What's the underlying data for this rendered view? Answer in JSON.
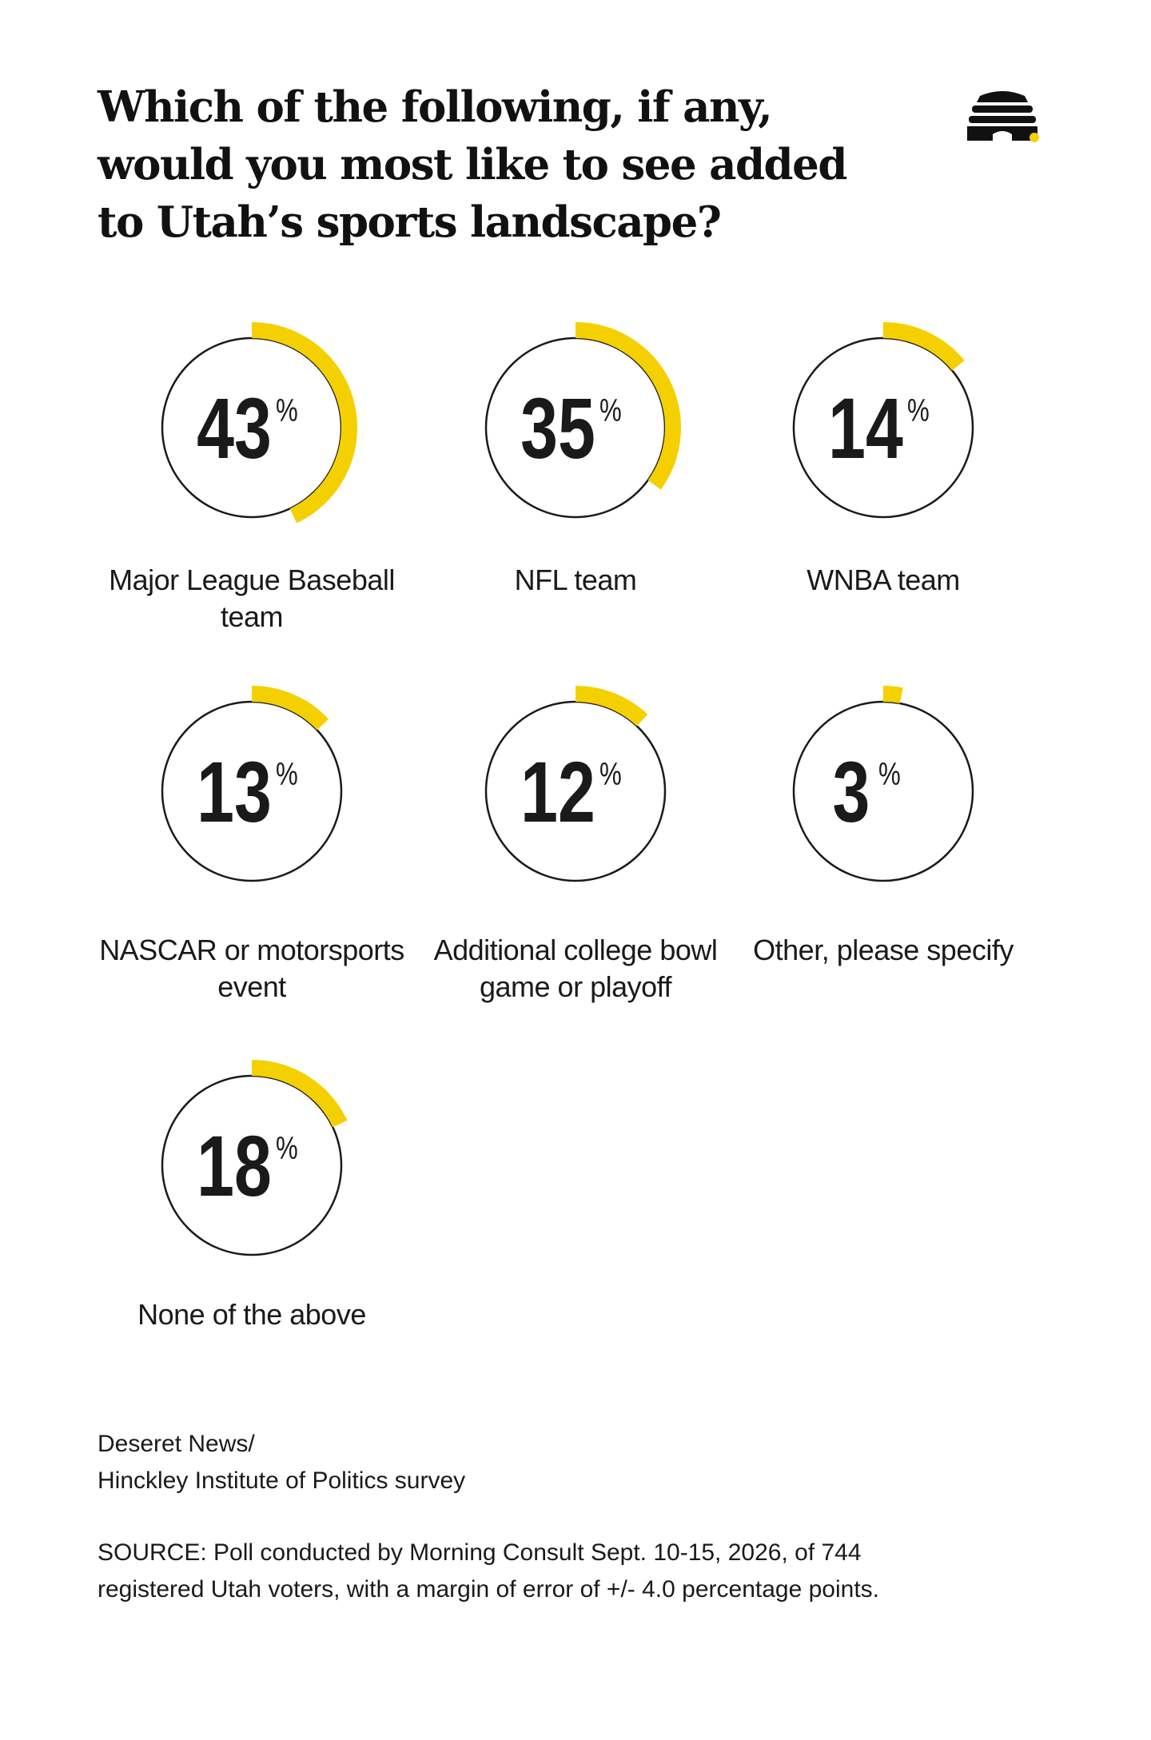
{
  "header": {
    "title": "Which of the following, if any, would you most like to see added to Utah’s sports landscape?"
  },
  "logo": {
    "name": "beehive-logo-icon",
    "accent": "#f5d000"
  },
  "colors": {
    "accent": "#f5d000",
    "ring": "#1a1a1a"
  },
  "chart_data": {
    "type": "donut",
    "title": "Which of the following, if any, would you most like to see added to Utah’s sports landscape?",
    "unit": "%",
    "categories": [
      "Major League Baseball team",
      "NFL team",
      "WNBA team",
      "NASCAR or motorsports event",
      "Additional college bowl game or playoff",
      "Other, please specify",
      "None of the above"
    ],
    "values": [
      43,
      35,
      14,
      13,
      12,
      3,
      18
    ],
    "percent_sign": "%"
  },
  "footer": {
    "credit_line1": "Deseret News/",
    "credit_line2": "Hinckley Institute of Politics survey",
    "source_line1": "SOURCE: Poll conducted by Morning Consult Sept. 10-15, 2026, of 744",
    "source_line2": "registered Utah voters, with a margin of error of +/- 4.0 percentage points."
  }
}
